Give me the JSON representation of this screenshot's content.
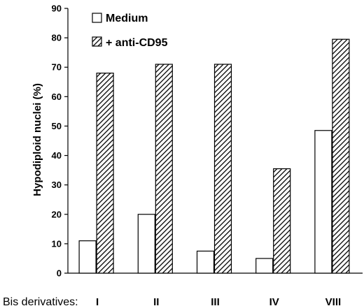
{
  "chart_data": {
    "type": "bar",
    "ylabel": "Hypodiploid nuclei (%)",
    "xlabel": "Bis derivatives:",
    "categories": [
      "I",
      "II",
      "III",
      "IV",
      "VIII"
    ],
    "ylim": [
      0,
      90
    ],
    "yticks": [
      0,
      10,
      20,
      30,
      40,
      50,
      60,
      70,
      80,
      90
    ],
    "grid": false,
    "legend_position": "top-left",
    "series": [
      {
        "name": "Medium",
        "values": [
          11,
          20,
          7.5,
          5,
          48.5
        ],
        "fill": "white"
      },
      {
        "name": "+ anti-CD95",
        "values": [
          68,
          71,
          71,
          35.5,
          79.5
        ],
        "fill": "diagonal-hatch"
      }
    ]
  },
  "colors": {
    "axis": "#000000",
    "bar_outline": "#000000",
    "hatch": "#000000",
    "background": "#ffffff"
  }
}
